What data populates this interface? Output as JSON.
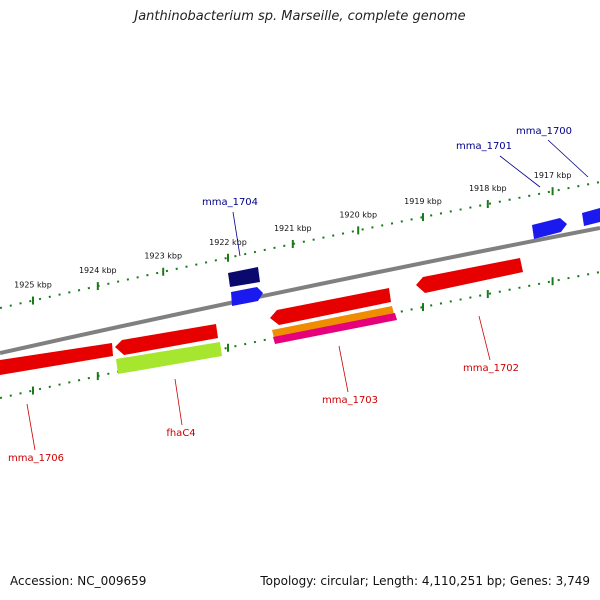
{
  "title": "Janthinobacterium sp. Marseille, complete genome",
  "accession": "Accession: NC_009659",
  "summary": "Topology: circular; Length: 4,110,251 bp; Genes: 3,749",
  "colors": {
    "backbone": "#808080",
    "tick": "#1a7a1a",
    "label_forward": "#00008b",
    "label_reverse": "#cc0000"
  },
  "scale": {
    "ticks": [
      "1925 kbp",
      "1924 kbp",
      "1923 kbp",
      "1922 kbp",
      "1921 kbp",
      "1920 kbp",
      "1919 kbp",
      "1918 kbp",
      "1917 kbp"
    ]
  },
  "genes": [
    {
      "name": "mma_1700",
      "strand": "forward"
    },
    {
      "name": "mma_1701",
      "strand": "forward"
    },
    {
      "name": "mma_1704",
      "strand": "forward"
    },
    {
      "name": "mma_1702",
      "strand": "reverse"
    },
    {
      "name": "mma_1703",
      "strand": "reverse"
    },
    {
      "name": "fhaC4",
      "strand": "reverse"
    },
    {
      "name": "mma_1706",
      "strand": "reverse"
    }
  ]
}
